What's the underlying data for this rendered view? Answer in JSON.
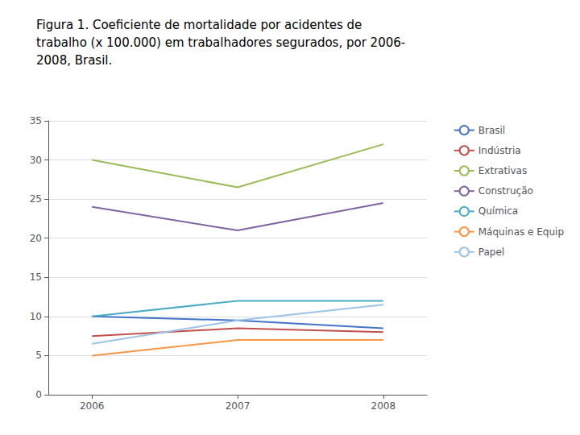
{
  "chart_data": {
    "type": "line",
    "title": "Figura 1. Coeficiente de mortalidade por acidentes de\ntrabalho (x 100.000) em trabalhadores segurados, por 2006-\n2008, Brasil.",
    "x": [
      2006,
      2007,
      2008
    ],
    "series": [
      {
        "name": "Brasil",
        "color": "#4472C4",
        "values": [
          10.0,
          9.5,
          8.5
        ]
      },
      {
        "name": "Indústria",
        "color": "#C0504D",
        "values": [
          7.5,
          8.5,
          8.0
        ]
      },
      {
        "name": "Extrativas",
        "color": "#9BBB59",
        "values": [
          30.0,
          26.5,
          32.0
        ]
      },
      {
        "name": "Construção",
        "color": "#8064A2",
        "values": [
          24.0,
          21.0,
          24.5
        ]
      },
      {
        "name": "Química",
        "color": "#4BACC6",
        "values": [
          10.0,
          12.0,
          12.0
        ]
      },
      {
        "name": "Máquinas e Equip",
        "color": "#F79646",
        "values": [
          5.0,
          7.0,
          7.0
        ]
      },
      {
        "name": "Papel",
        "color": "#9DC3E6",
        "values": [
          6.5,
          9.5,
          11.5
        ]
      }
    ],
    "xlim": [
      2005.7,
      2008.3
    ],
    "xticks": [
      2006,
      2007,
      2008
    ],
    "ylim": [
      0,
      35
    ],
    "yticks": [
      0,
      5,
      10,
      15,
      20,
      25,
      30,
      35
    ],
    "grid": true,
    "legend": "upper right"
  }
}
